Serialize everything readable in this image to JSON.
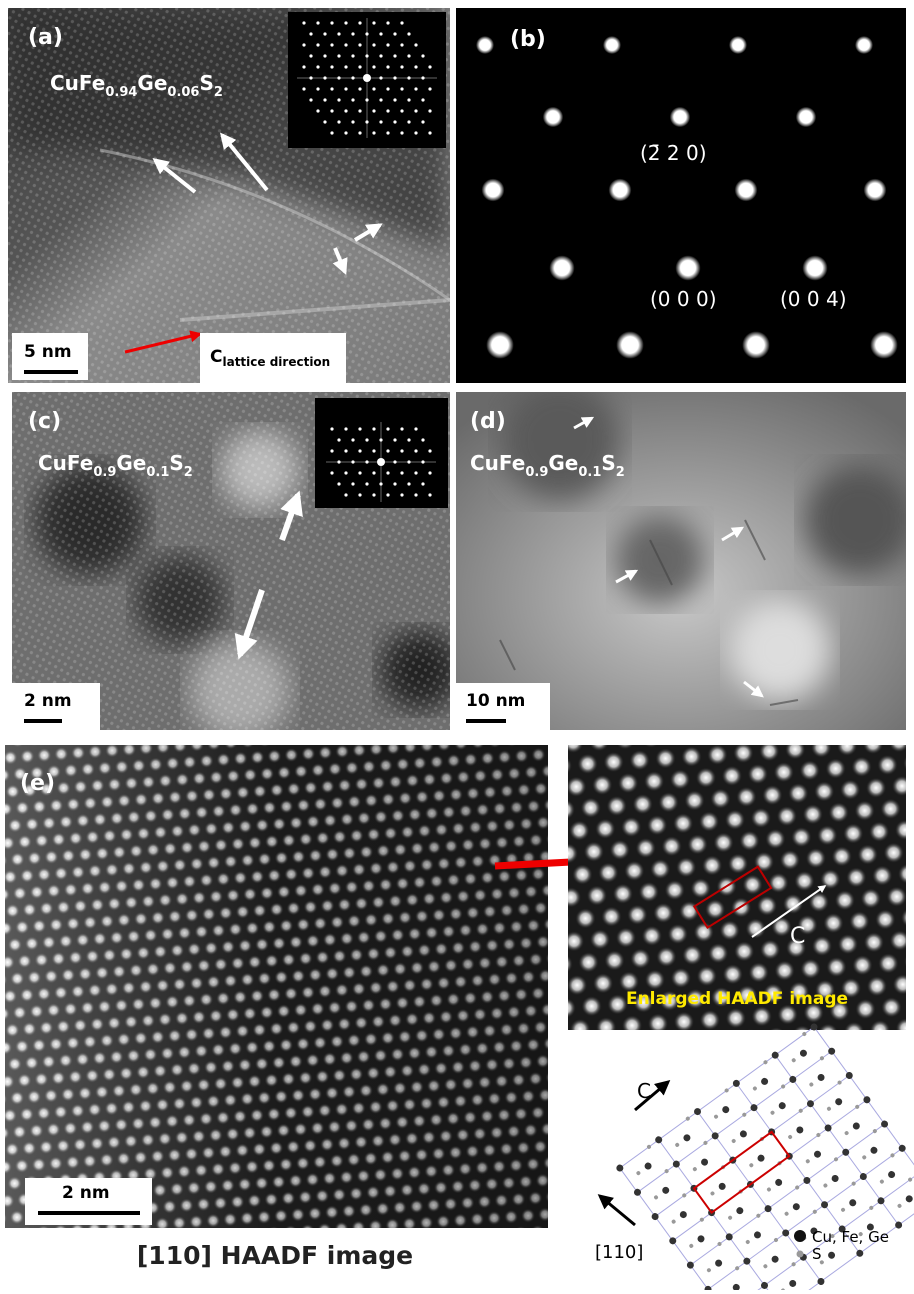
{
  "panels": {
    "a": {
      "label": "(a)",
      "formula": [
        "CuFe",
        "0.94",
        "Ge",
        "0.06",
        "S",
        "2"
      ],
      "scale_bar": "5 nm",
      "direction_label": [
        "C",
        "lattice direction"
      ]
    },
    "b": {
      "label": "(b)",
      "spots": [
        "(2̄ 2 0)",
        "(0 0 0)",
        "(0 0 4)"
      ]
    },
    "c": {
      "label": "(c)",
      "formula": [
        "CuFe",
        "0.9",
        "Ge",
        "0.1",
        "S",
        "2"
      ],
      "scale_bar": "2 nm"
    },
    "d": {
      "label": "(d)",
      "formula": [
        "CuFe",
        "0.9",
        "Ge",
        "0.1",
        "S",
        "2"
      ],
      "scale_bar": "10 nm"
    },
    "e": {
      "label": "(e)",
      "scale_bar": "2 nm",
      "caption": "[110] HAADF image",
      "enlarged_caption": "Enlarged HAADF image",
      "enlarged_axis": "C",
      "model_axes": [
        "C",
        "[110]"
      ],
      "legend": [
        "Cu, Fe, Ge",
        "S"
      ]
    }
  }
}
